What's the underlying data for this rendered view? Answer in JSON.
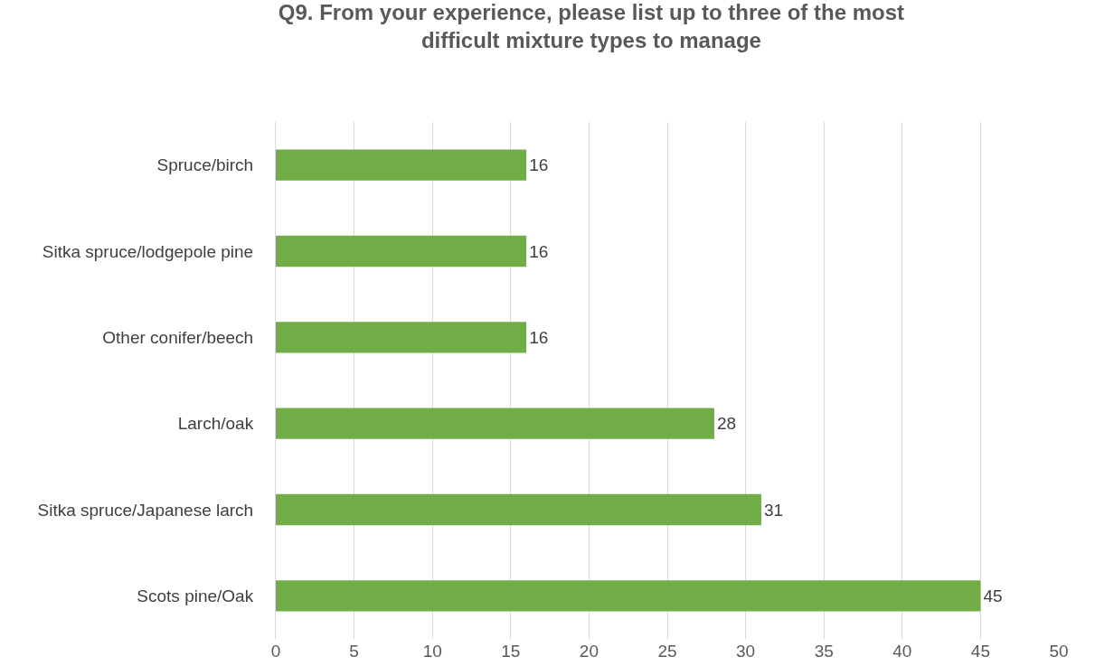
{
  "chart_data": {
    "type": "bar",
    "orientation": "horizontal",
    "title": "Q9. From your experience, please list up to three of the most difficult mixture types to manage",
    "categories": [
      "Spruce/birch",
      "Sitka spruce/lodgepole pine",
      "Other conifer/beech",
      "Larch/oak",
      "Sitka spruce/Japanese larch",
      "Scots pine/Oak"
    ],
    "values": [
      16,
      16,
      16,
      28,
      31,
      45
    ],
    "color": "#70ad47",
    "xlim": [
      0,
      50
    ],
    "xticks": [
      0,
      5,
      10,
      15,
      20,
      25,
      30,
      35,
      40,
      45,
      50
    ],
    "grid": "x",
    "data_labels": true
  }
}
